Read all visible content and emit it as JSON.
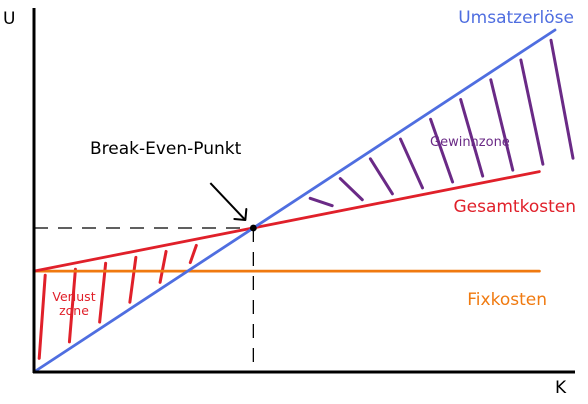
{
  "chart_data": {
    "type": "line",
    "title": "",
    "xlabel": "K",
    "ylabel": "U",
    "xlim": [
      0,
      100
    ],
    "ylim": [
      0,
      100
    ],
    "grid": false,
    "series": [
      {
        "name": "Umsatzerlöse",
        "color": "#4f6ee0",
        "points": [
          [
            0,
            0
          ],
          [
            100,
            100
          ]
        ]
      },
      {
        "name": "Gesamtkosten",
        "color": "#e0202a",
        "points": [
          [
            0,
            29.5
          ],
          [
            100,
            59.5
          ]
        ]
      },
      {
        "name": "Fixkosten",
        "color": "#f07a10",
        "points": [
          [
            0,
            29.5
          ],
          [
            100,
            29.5
          ]
        ]
      }
    ],
    "break_even": {
      "label": "Break-Even-Punkt",
      "x": 42.1,
      "y": 42.1
    },
    "zones": [
      {
        "label": "Verlust zone",
        "color": "#e0202a",
        "x_from": 1,
        "x_to": 30
      },
      {
        "label": "Gewinnzone",
        "color": "#6a2a86",
        "x_from": 48,
        "x_to": 100
      }
    ]
  }
}
